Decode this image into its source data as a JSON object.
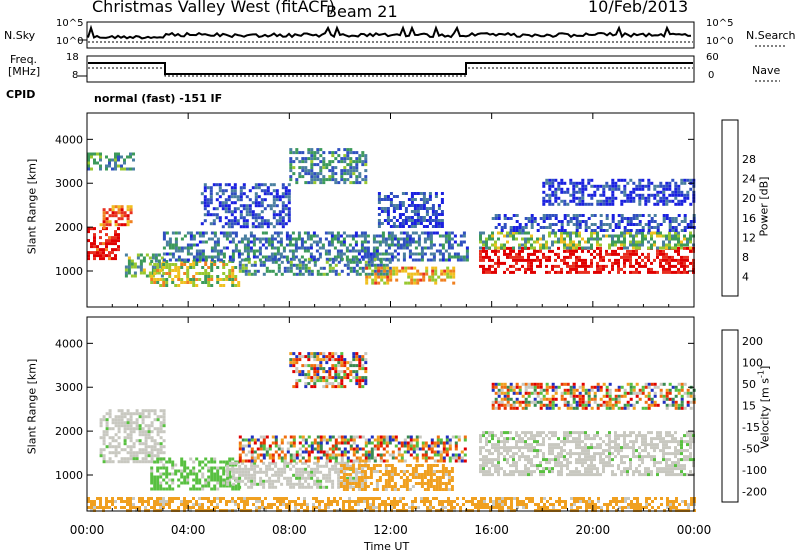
{
  "header": {
    "station": "Christmas Valley West (fitACF)",
    "beam": "Beam 21",
    "date": "10/Feb/2013"
  },
  "status": {
    "nsky_label": "N.Sky",
    "nsky_ticks": [
      "10^5",
      "10^0"
    ],
    "nsearch_label": "N.Search",
    "nsearch_ticks": [
      "10^5",
      "10^0"
    ],
    "freq_label_1": "Freq.",
    "freq_label_2": "[MHz]",
    "freq_ticks": [
      "18",
      "8"
    ],
    "nave_label": "Nave",
    "nave_ticks": [
      "60",
      "0"
    ],
    "cpid_label": "CPID",
    "cpid_text": "normal (fast) -151 IF"
  },
  "chart_data": [
    {
      "type": "heatmap",
      "name": "power",
      "ylabel": "Slant Range [km]",
      "yticks": [
        1000,
        2000,
        3000,
        4000
      ],
      "ylim": [
        180,
        4600
      ],
      "xlim": [
        0,
        24
      ],
      "xticks": [
        "00:00",
        "04:00",
        "08:00",
        "12:00",
        "16:00",
        "20:00",
        "00:00"
      ],
      "colorbar": {
        "label": "Power [dB]",
        "ticks": [
          "4",
          "8",
          "12",
          "16",
          "20",
          "24",
          "28"
        ],
        "colors": [
          "#1a20e0",
          "#3050c0",
          "#4a7fa0",
          "#3c9a5a",
          "#98c830",
          "#f0c020",
          "#f08020",
          "#e83020",
          "#e00000"
        ]
      },
      "regions": [
        {
          "t0": 0.0,
          "t1": 1.2,
          "r0": 1300,
          "r1": 2000,
          "level": 0.9
        },
        {
          "t0": 0.5,
          "t1": 1.8,
          "r0": 2000,
          "r1": 2500,
          "level": 0.8
        },
        {
          "t0": 0.0,
          "t1": 1.8,
          "r0": 3300,
          "r1": 3700,
          "level": 0.35
        },
        {
          "t0": 1.5,
          "t1": 3.0,
          "r0": 900,
          "r1": 1400,
          "level": 0.4
        },
        {
          "t0": 2.5,
          "t1": 6.0,
          "r0": 700,
          "r1": 1250,
          "level": 0.55
        },
        {
          "t0": 3.0,
          "t1": 15.0,
          "r0": 1250,
          "r1": 1900,
          "level": 0.25
        },
        {
          "t0": 6.0,
          "t1": 12.0,
          "r0": 900,
          "r1": 1300,
          "level": 0.3
        },
        {
          "t0": 11.0,
          "t1": 14.5,
          "r0": 700,
          "r1": 1100,
          "level": 0.65
        },
        {
          "t0": 8.0,
          "t1": 11.0,
          "r0": 3000,
          "r1": 3800,
          "level": 0.3
        },
        {
          "t0": 4.5,
          "t1": 8.0,
          "r0": 2000,
          "r1": 3000,
          "level": 0.15
        },
        {
          "t0": 11.5,
          "t1": 14.0,
          "r0": 2000,
          "r1": 2800,
          "level": 0.15
        },
        {
          "t0": 15.5,
          "t1": 24.0,
          "r0": 1000,
          "r1": 1550,
          "level": 0.95
        },
        {
          "t0": 15.5,
          "t1": 24.0,
          "r0": 1550,
          "r1": 1900,
          "level": 0.45
        },
        {
          "t0": 16.0,
          "t1": 24.0,
          "r0": 1900,
          "r1": 2300,
          "level": 0.15
        },
        {
          "t0": 18.0,
          "t1": 24.0,
          "r0": 2500,
          "r1": 3100,
          "level": 0.1
        }
      ]
    },
    {
      "type": "heatmap",
      "name": "velocity",
      "ylabel": "Slant Range [km]",
      "yticks": [
        1000,
        2000,
        3000,
        4000
      ],
      "ylim": [
        180,
        4600
      ],
      "xlim": [
        0,
        24
      ],
      "xlabel": "Time UT",
      "xticks": [
        "00:00",
        "04:00",
        "08:00",
        "12:00",
        "16:00",
        "20:00",
        "00:00"
      ],
      "colorbar": {
        "label": "Velocity [m s",
        "label_sup": "-1",
        "label_end": "]",
        "ticks": [
          "200",
          "100",
          "50",
          "15",
          "-15",
          "-50",
          "-100",
          "-200"
        ],
        "colors": [
          "#2030c0",
          "#3a8a50",
          "#58c040",
          "#c8c8c0",
          "#f0a020",
          "#f07010",
          "#e83000",
          "#e00000"
        ]
      },
      "regions": [
        {
          "t0": 0.5,
          "t1": 3.0,
          "r0": 1300,
          "r1": 2500,
          "cls": "gray"
        },
        {
          "t0": 2.5,
          "t1": 6.0,
          "r0": 700,
          "r1": 1400,
          "cls": "green"
        },
        {
          "t0": 5.5,
          "t1": 11.0,
          "r0": 700,
          "r1": 1300,
          "cls": "gray"
        },
        {
          "t0": 10.0,
          "t1": 14.5,
          "r0": 700,
          "r1": 1250,
          "cls": "orange"
        },
        {
          "t0": 6.0,
          "t1": 15.0,
          "r0": 1300,
          "r1": 1900,
          "cls": "mixed"
        },
        {
          "t0": 8.0,
          "t1": 11.0,
          "r0": 3000,
          "r1": 3800,
          "cls": "mixed"
        },
        {
          "t0": 15.5,
          "t1": 24.0,
          "r0": 1000,
          "r1": 2000,
          "cls": "gray"
        },
        {
          "t0": 16.0,
          "t1": 24.0,
          "r0": 2500,
          "r1": 3100,
          "cls": "mixed"
        },
        {
          "t0": 0.0,
          "t1": 24.0,
          "r0": 180,
          "r1": 500,
          "cls": "orange"
        }
      ]
    }
  ]
}
